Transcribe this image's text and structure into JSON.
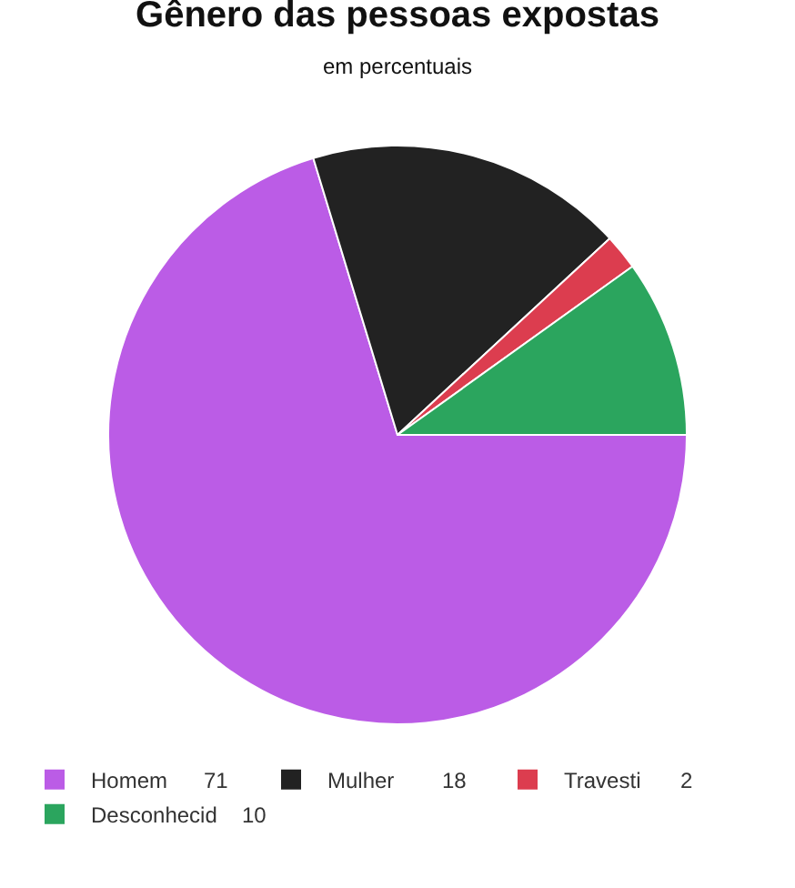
{
  "chart_data": {
    "type": "pie",
    "title": "Gênero das pessoas expostas",
    "subtitle": "em percentuais",
    "categories": [
      "Homem",
      "Mulher",
      "Travesti",
      "Desconhecid"
    ],
    "values": [
      71,
      18,
      2,
      10
    ],
    "colors": [
      "#bb5ce6",
      "#222222",
      "#dc3d4f",
      "#2ba55e"
    ],
    "data_labels": true,
    "legend": "bottom"
  }
}
